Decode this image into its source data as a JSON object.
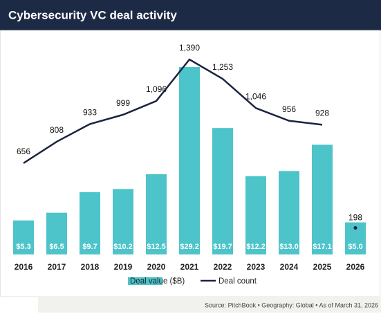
{
  "chart_data": {
    "type": "bar-line",
    "title": "Cybersecurity VC deal activity",
    "source": "Source: PitchBook  •  Geography: Global  •  As of March 31, 2026",
    "categories": [
      "2016",
      "2017",
      "2018",
      "2019",
      "2020",
      "2021",
      "2022",
      "2023",
      "2024",
      "2025",
      "2026"
    ],
    "series": [
      {
        "name": "Deal value ($B)",
        "type": "bar",
        "color": "#4cc4ca",
        "values": [
          5.3,
          6.5,
          9.7,
          10.2,
          12.5,
          29.2,
          19.7,
          12.2,
          13.0,
          17.1,
          5.0
        ],
        "value_labels": [
          "$5.3",
          "$6.5",
          "$9.7",
          "$10.2",
          "$12.5",
          "$29.2",
          "$19.7",
          "$12.2",
          "$13.0",
          "$17.1",
          "$5.0"
        ]
      },
      {
        "name": "Deal count",
        "type": "line",
        "color": "#1b2440",
        "connect_last": false,
        "values": [
          656,
          808,
          933,
          999,
          1096,
          1390,
          1253,
          1046,
          956,
          928,
          198
        ],
        "value_labels": [
          "656",
          "808",
          "933",
          "999",
          "1,096",
          "1,390",
          "1,253",
          "1,046",
          "956",
          "928",
          "198"
        ]
      }
    ]
  }
}
